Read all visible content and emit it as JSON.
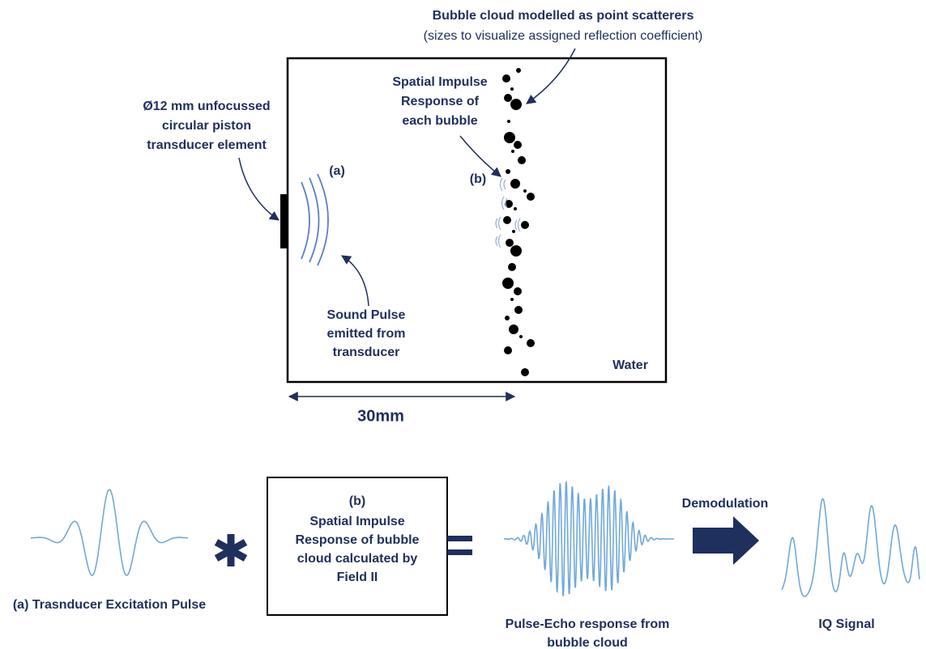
{
  "scene": {
    "cloud_title": "Bubble cloud modelled as point scatterers",
    "cloud_subtitle": "(sizes to visualize assigned reflection coefficient)",
    "impulse_label": [
      "Spatial Impulse",
      "Response of",
      "each bubble"
    ],
    "transducer_label": [
      "Ø12 mm unfocussed",
      "circular piston",
      "transducer element"
    ],
    "marker_a": "(a)",
    "marker_b": "(b)",
    "pulse_label": [
      "Sound Pulse",
      "emitted from",
      "transducer"
    ],
    "medium": "Water",
    "distance": "30mm"
  },
  "pipeline": {
    "excitation_label": "(a) Trasnducer Excitation Pulse",
    "box_lines": [
      "(b)",
      "Spatial Impulse",
      "Response of bubble",
      "cloud calculated by",
      "Field II"
    ],
    "demodulation": "Demodulation",
    "echo_label": [
      "Pulse-Echo response from",
      "bubble cloud"
    ],
    "iq_label": "IQ Signal"
  }
}
